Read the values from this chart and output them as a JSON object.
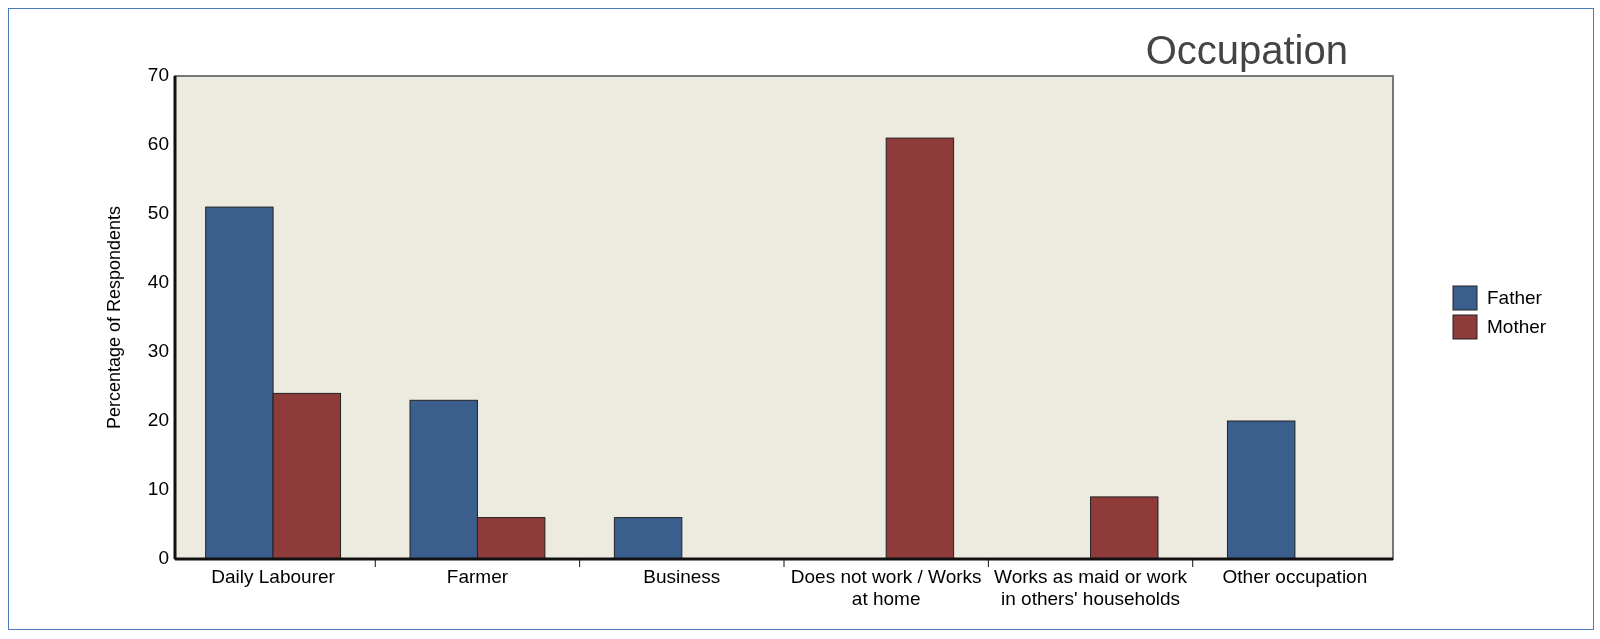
{
  "chart_data": {
    "type": "bar",
    "title": "Occupation",
    "ylabel": "Percentage of Respondents",
    "categories": [
      "Daily Labourer",
      "Farmer",
      "Business",
      "Does not work / Works at home",
      "Works as maid or work in others' households",
      "Other occupation"
    ],
    "series": [
      {
        "name": "Father",
        "color": "#3b5f8c",
        "values": [
          51,
          23,
          6,
          null,
          null,
          20
        ]
      },
      {
        "name": "Mother",
        "color": "#8e3b3a",
        "values": [
          24,
          6,
          null,
          61,
          9,
          null
        ]
      }
    ],
    "ylim": [
      0,
      70
    ],
    "yticks": [
      0,
      10,
      20,
      30,
      40,
      50,
      60,
      70
    ],
    "grid": false,
    "legend": "right"
  }
}
